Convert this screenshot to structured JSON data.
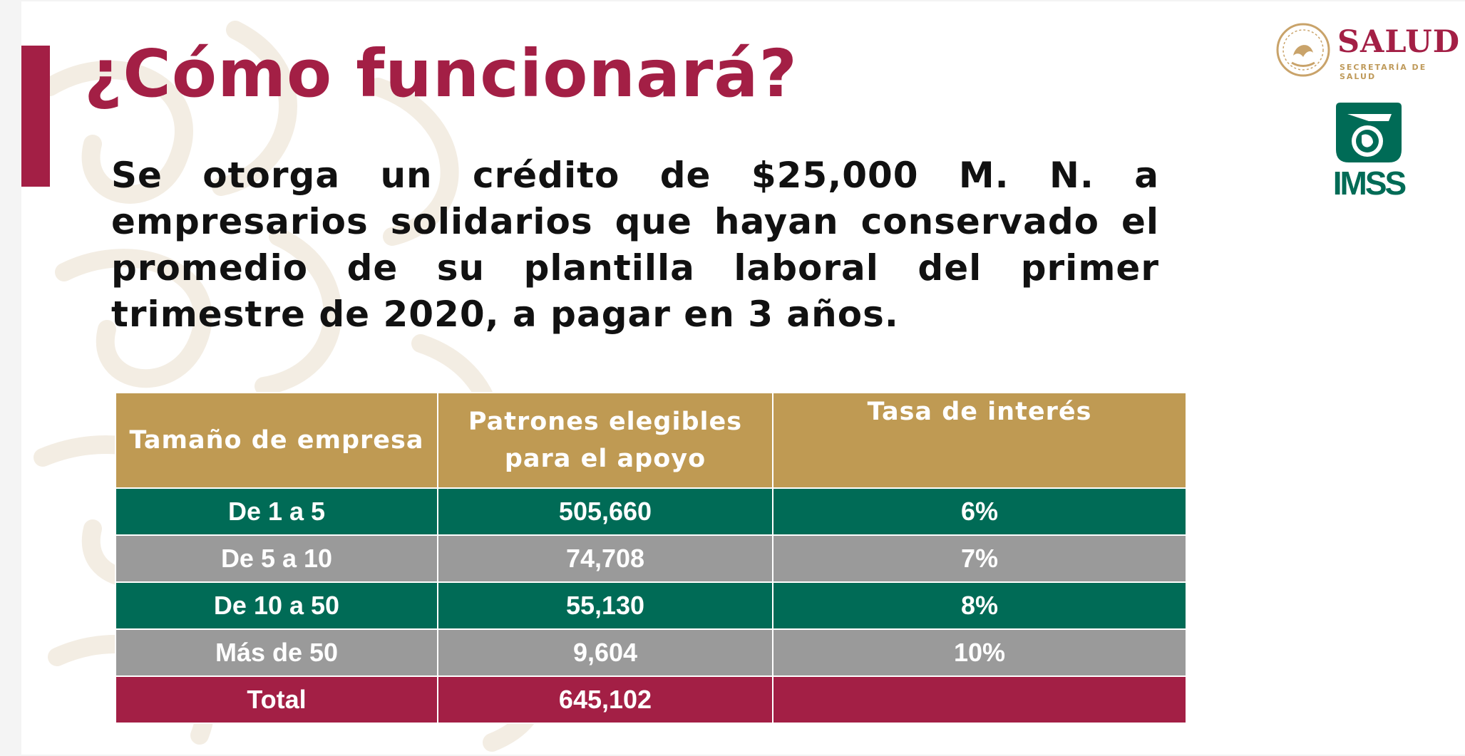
{
  "title": "¿Cómo funcionará?",
  "body": "Se otorga un crédito de $25,000 M. N. a empresarios solidarios que hayan conservado el promedio de su plantilla laboral del primer trimestre de 2020, a pagar en 3 años.",
  "logos": {
    "salud_word": "SALUD",
    "salud_sub": "SECRETARÍA DE SALUD",
    "imss": "IMSS"
  },
  "colors": {
    "brand_red": "#a31f45",
    "gold": "#bf9a53",
    "green": "#006b56",
    "gray": "#9a9a9a"
  },
  "table": {
    "headers": [
      "Tamaño de empresa",
      "Patrones elegibles para el apoyo",
      "Tasa de interés"
    ],
    "rows": [
      {
        "size": "De 1 a 5",
        "eligible": "505,660",
        "rate": "6%"
      },
      {
        "size": "De 5 a 10",
        "eligible": "74,708",
        "rate": "7%"
      },
      {
        "size": "De 10 a 50",
        "eligible": "55,130",
        "rate": "8%"
      },
      {
        "size": "Más de 50",
        "eligible": "9,604",
        "rate": "10%"
      }
    ],
    "total": {
      "label": "Total",
      "eligible": "645,102",
      "rate": ""
    }
  }
}
